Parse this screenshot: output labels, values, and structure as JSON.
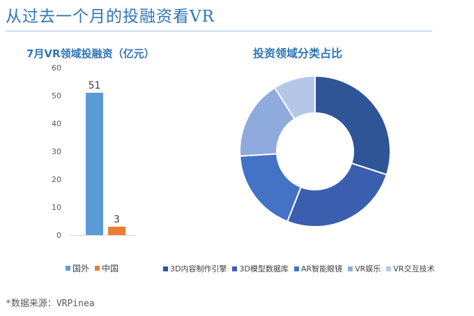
{
  "page": {
    "title": "从过去一个月的投融资看VR",
    "source": "*数据来源：VRPinea"
  },
  "chart_data": [
    {
      "type": "bar",
      "title": "7月VR领域投融资（亿元）",
      "categories": [
        "国外",
        "中国"
      ],
      "values": [
        51,
        3
      ],
      "colors": [
        "#5b9bd5",
        "#ed7d31"
      ],
      "ylim": [
        0,
        60
      ],
      "yticks": [
        0,
        10,
        20,
        30,
        40,
        50,
        60
      ],
      "xlabel": "",
      "ylabel": "",
      "legend": "bottom"
    },
    {
      "type": "pie",
      "subtype": "donut",
      "title": "投资领域分类占比",
      "labels": [
        "3D内容制作引擎",
        "3D模型数据库",
        "AR智能眼镜",
        "VR娱乐",
        "VR交互技术"
      ],
      "values": [
        30,
        26,
        18,
        17,
        9
      ],
      "colors": [
        "#2f5597",
        "#3a5fae",
        "#4472c4",
        "#8faadc",
        "#b4c7e7"
      ],
      "legend": "bottom"
    }
  ]
}
